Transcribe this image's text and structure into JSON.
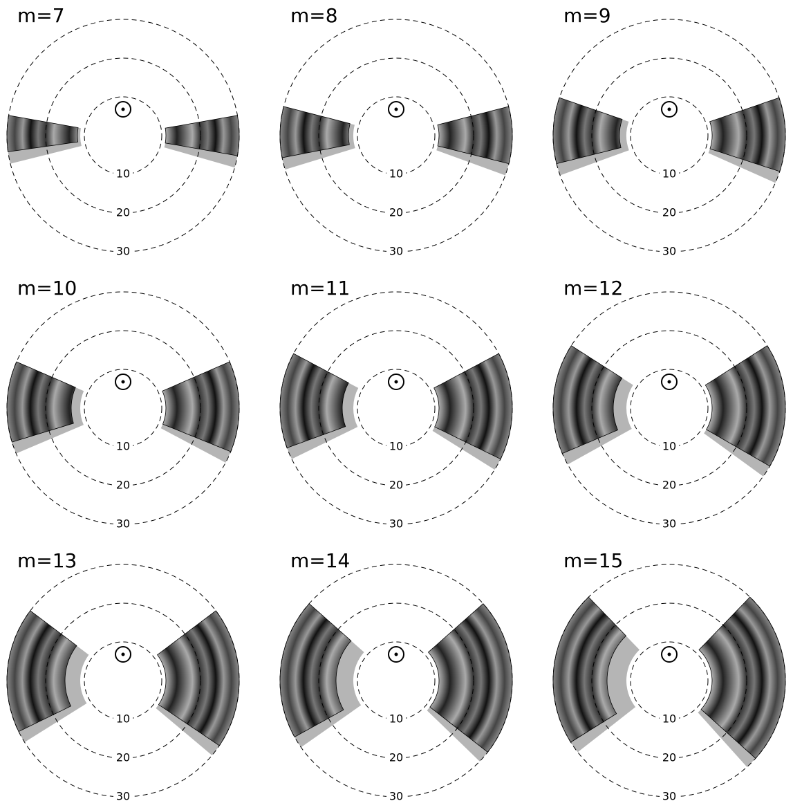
{
  "chart_data": [
    {
      "type": "polar",
      "title": "m=7",
      "rlim": [
        0,
        30
      ],
      "rticks": [
        10,
        20,
        30
      ]
    },
    {
      "type": "polar",
      "title": "m=8",
      "rlim": [
        0,
        30
      ],
      "rticks": [
        10,
        20,
        30
      ]
    },
    {
      "type": "polar",
      "title": "m=9",
      "rlim": [
        0,
        30
      ],
      "rticks": [
        10,
        20,
        30
      ]
    },
    {
      "type": "polar",
      "title": "m=10",
      "rlim": [
        0,
        30
      ],
      "rticks": [
        10,
        20,
        30
      ]
    },
    {
      "type": "polar",
      "title": "m=11",
      "rlim": [
        0,
        30
      ],
      "rticks": [
        10,
        20,
        30
      ]
    },
    {
      "type": "polar",
      "title": "m=12",
      "rlim": [
        0,
        30
      ],
      "rticks": [
        10,
        20,
        30
      ]
    },
    {
      "type": "polar",
      "title": "m=13",
      "rlim": [
        0,
        30
      ],
      "rticks": [
        10,
        20,
        30
      ]
    },
    {
      "type": "polar",
      "title": "m=14",
      "rlim": [
        0,
        30
      ],
      "rticks": [
        10,
        20,
        30
      ]
    },
    {
      "type": "polar",
      "title": "m=15",
      "rlim": [
        0,
        30
      ],
      "rticks": [
        10,
        20,
        30
      ]
    }
  ]
}
